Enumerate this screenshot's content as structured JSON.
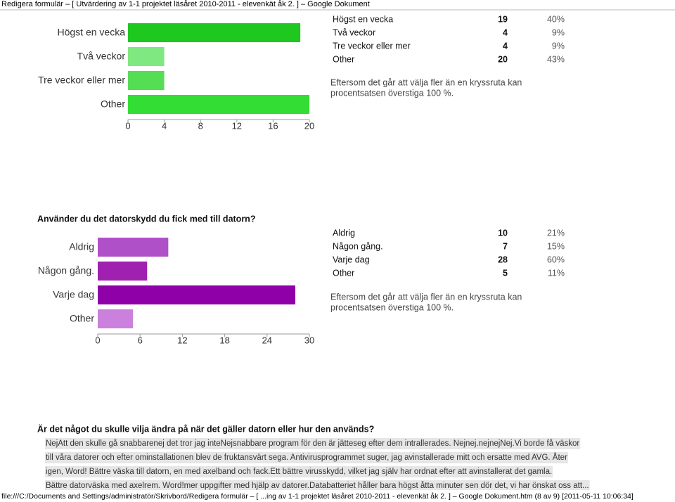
{
  "header": "Redigera formulär – [ Utvärdering av 1-1 projektet läsåret 2010-2011 - elevenkät åk 2. ] – Google Dokument",
  "sections": [
    {
      "chart": {
        "type": "bar",
        "categories": [
          "Högst en vecka",
          "Två veckor",
          "Tre veckor eller mer",
          "Other"
        ],
        "values": [
          19,
          4,
          4,
          20
        ],
        "colors": [
          "#1ec81e",
          "#80e880",
          "#55dd55",
          "#33dd33"
        ],
        "xlim": [
          0,
          20
        ],
        "xticks": [
          0,
          4,
          8,
          12,
          16,
          20
        ]
      },
      "table": [
        [
          "Högst en vecka",
          19,
          "40%"
        ],
        [
          "Två veckor",
          4,
          "9%"
        ],
        [
          "Tre veckor eller mer",
          4,
          "9%"
        ],
        [
          "Other",
          20,
          "43%"
        ]
      ],
      "note": [
        "Eftersom det går att välja fler än en kryssruta kan",
        "procentsatsen överstiga 100 %."
      ]
    },
    {
      "question": "Använder du det datorskydd du fick med till datorn?",
      "chart": {
        "type": "bar",
        "categories": [
          "Aldrig",
          "Någon gång.",
          "Varje dag",
          "Other"
        ],
        "values": [
          10,
          7,
          28,
          5
        ],
        "colors": [
          "#b050c8",
          "#a020b0",
          "#9000a8",
          "#cc80dd"
        ],
        "xlim": [
          0,
          30
        ],
        "xticks": [
          0,
          6,
          12,
          18,
          24,
          30
        ]
      },
      "table": [
        [
          "Aldrig",
          10,
          "21%"
        ],
        [
          "Någon gång.",
          7,
          "15%"
        ],
        [
          "Varje dag",
          28,
          "60%"
        ],
        [
          "Other",
          5,
          "11%"
        ]
      ],
      "note": [
        "Eftersom det går att välja fler än en kryssruta kan",
        "procentsatsen överstiga 100 %."
      ]
    },
    {
      "question": "Är det något du skulle vilja ändra på när det gäller datorn eller hur den används?",
      "answer_lines": [
        "NejAtt den skulle gå snabbarenej det tror jag inteNejsnabbare program för den är jätteseg efter dem intrallerades. Nejnej.nejnejNej.Vi borde få väskor",
        "till våra datorer och efter ominstallationen blev de fruktansvärt sega. Antivirusprogrammet suger, jag avinstallerade mitt och ersatte med AVG. Åter",
        "igen, Word! Bättre väska till datorn, en med axelband och fack.Ett bättre virusskydd, vilket jag själv har ordnat efter att avinstallerat det gamla.",
        "Bättre datorväska med axelrem. Word!mer uppgifter med hjälp av datorer.Databatteriet håller bara högst åtta minuter sen dör det, vi har önskat oss att..."
      ]
    }
  ],
  "footer": "file:///C:/Documents and Settings/administratör/Skrivbord/Redigera formulär – [ ...ing av 1-1 projektet läsåret 2010-2011 - elevenkät åk 2. ] – Google Dokument.htm (8 av 9) [2011-05-11 10:06:34]"
}
